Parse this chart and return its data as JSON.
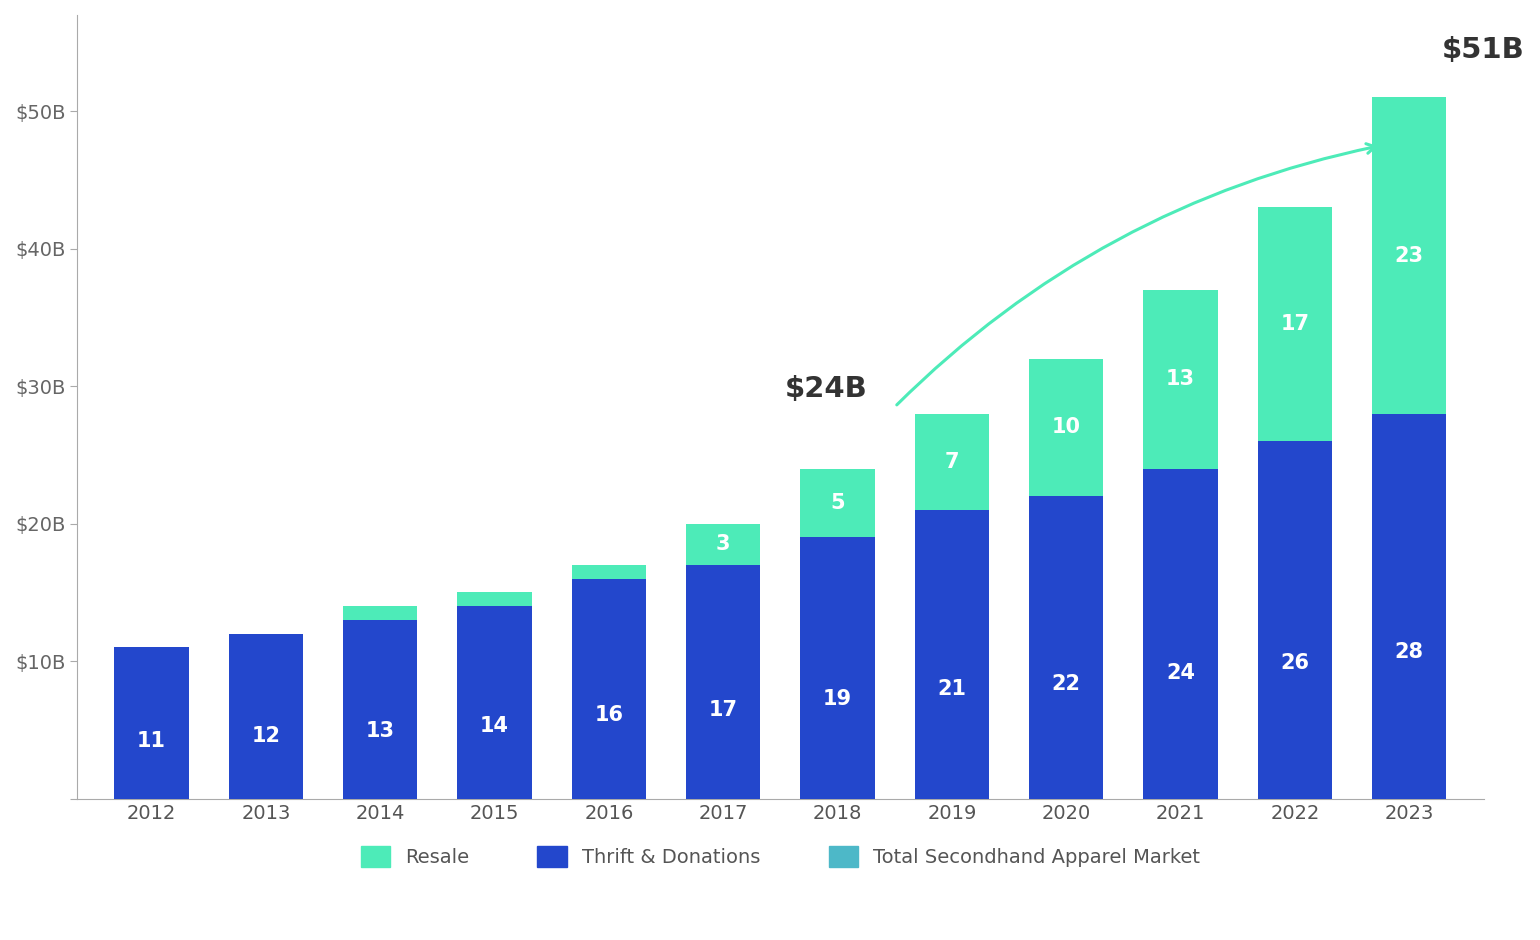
{
  "years": [
    2012,
    2013,
    2014,
    2015,
    2016,
    2017,
    2018,
    2019,
    2020,
    2021,
    2022,
    2023
  ],
  "thrift_donations": [
    11,
    12,
    13,
    14,
    16,
    17,
    19,
    21,
    22,
    24,
    26,
    28
  ],
  "resale": [
    0,
    0,
    1,
    1,
    1,
    3,
    5,
    7,
    10,
    13,
    17,
    23
  ],
  "thrift_color": "#2347CC",
  "resale_color": "#4DEBB8",
  "bg_color": "#FFFFFF",
  "label_color": "#FFFFFF",
  "arrow_color": "#4DEBB8",
  "annotation_color": "#333333",
  "yticks": [
    0,
    10,
    20,
    30,
    40,
    50
  ],
  "ytick_labels": [
    "",
    "$10B",
    "$20B",
    "$30B",
    "$40B",
    "$50B"
  ],
  "ylim": [
    0,
    57
  ],
  "legend_labels": [
    "Resale",
    "Thrift & Donations",
    "Total Secondhand Apparel Market"
  ],
  "legend_colors": [
    "#4DEBB8",
    "#2347CC",
    "#4DEBB8"
  ],
  "legend_color2": "#4DEBB8",
  "bar_width": 0.65
}
